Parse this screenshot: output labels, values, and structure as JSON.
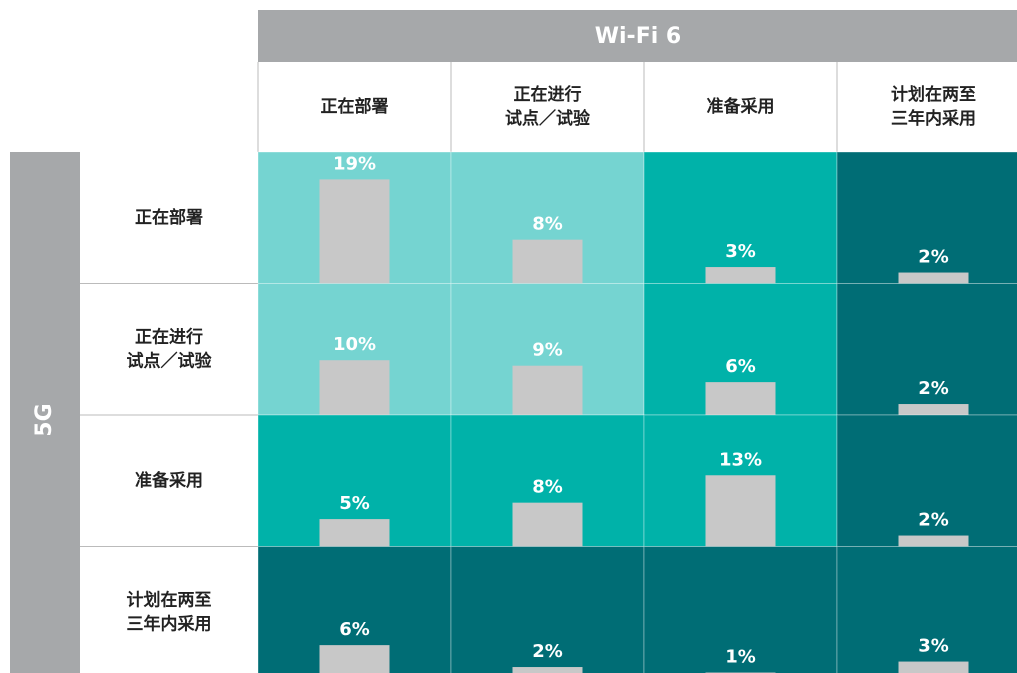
{
  "chart_data": {
    "type": "matrix",
    "x_title": "Wi-Fi 6",
    "y_title": "5G",
    "columns": [
      [
        "正在部署"
      ],
      [
        "正在进行",
        "试点／试验"
      ],
      [
        "准备采用"
      ],
      [
        "计划在两至",
        "三年内采用"
      ]
    ],
    "rows": [
      [
        "正在部署"
      ],
      [
        "正在进行",
        "试点／试验"
      ],
      [
        "准备采用"
      ],
      [
        "计划在两至",
        "三年内采用"
      ]
    ],
    "values": [
      [
        19,
        8,
        3,
        2
      ],
      [
        10,
        9,
        6,
        2
      ],
      [
        5,
        8,
        13,
        2
      ],
      [
        6,
        2,
        1,
        3
      ]
    ],
    "value_labels": [
      [
        "19%",
        "8%",
        "3%",
        "2%"
      ],
      [
        "10%",
        "9%",
        "6%",
        "2%"
      ],
      [
        "5%",
        "8%",
        "13%",
        "2%"
      ],
      [
        "6%",
        "2%",
        "1%",
        "3%"
      ]
    ],
    "cell_colors": [
      [
        "#75d4d1",
        "#75d4d1",
        "#00b2a9",
        "#006d75"
      ],
      [
        "#75d4d1",
        "#75d4d1",
        "#00b2a9",
        "#006d75"
      ],
      [
        "#00b2a9",
        "#00b2a9",
        "#00b2a9",
        "#006d75"
      ],
      [
        "#006d75",
        "#006d75",
        "#006d75",
        "#006d75"
      ]
    ],
    "bar_color": "#c8c8c8",
    "ylim": [
      0,
      24
    ]
  }
}
